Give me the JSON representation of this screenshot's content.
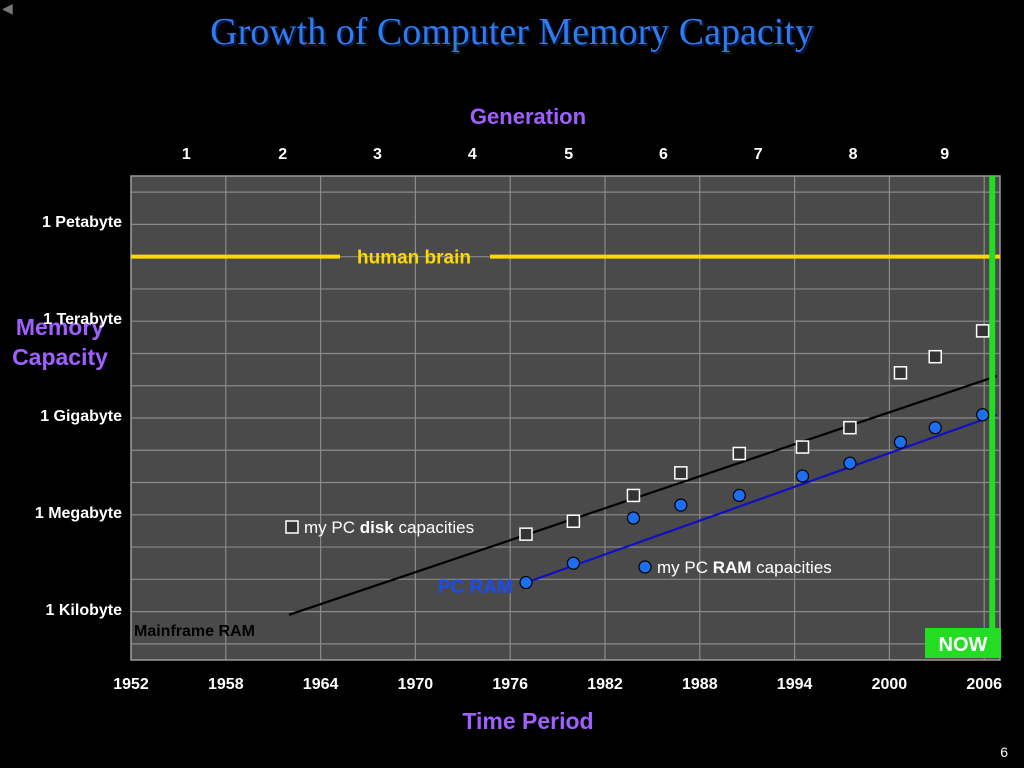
{
  "slide": {
    "title": "Growth of Computer Memory Capacity",
    "page_number": "6",
    "back_icon": "◀"
  },
  "chart_data": {
    "type": "scatter",
    "title": "Growth of Computer Memory Capacity",
    "xlabel": "Time Period",
    "ylabel": "Memory Capacity",
    "top_axis_label": "Generation",
    "xlim": [
      1952,
      2007
    ],
    "x_ticks": [
      1952,
      1958,
      1964,
      1970,
      1976,
      1982,
      1988,
      1994,
      2000,
      2006
    ],
    "ylim_bytes_log10": [
      1.5,
      16.5
    ],
    "y_ticks": [
      {
        "label": "1 Kilobyte",
        "log10": 3
      },
      {
        "label": "1 Megabyte",
        "log10": 6
      },
      {
        "label": "1 Gigabyte",
        "log10": 9
      },
      {
        "label": "1 Terabyte",
        "log10": 12
      },
      {
        "label": "1 Petabyte",
        "log10": 15
      }
    ],
    "generations": [
      {
        "label": "1",
        "x": 1955.5
      },
      {
        "label": "2",
        "x": 1961.6
      },
      {
        "label": "3",
        "x": 1967.6
      },
      {
        "label": "4",
        "x": 1973.6
      },
      {
        "label": "5",
        "x": 1979.7
      },
      {
        "label": "6",
        "x": 1985.7
      },
      {
        "label": "7",
        "x": 1991.7
      },
      {
        "label": "8",
        "x": 1997.7
      },
      {
        "label": "9",
        "x": 2003.5
      }
    ],
    "grid": true,
    "series": [
      {
        "name": "my PC disk capacities",
        "marker": "square",
        "color": "#ffffff",
        "points": [
          [
            1977.0,
            5.4
          ],
          [
            1980.0,
            5.8
          ],
          [
            1983.8,
            6.6
          ],
          [
            1986.8,
            7.3
          ],
          [
            1990.5,
            7.9
          ],
          [
            1994.5,
            8.1
          ],
          [
            1997.5,
            8.7
          ],
          [
            2000.7,
            10.4
          ],
          [
            2002.9,
            10.9
          ],
          [
            2005.9,
            11.7
          ]
        ]
      },
      {
        "name": "my PC RAM capacities",
        "marker": "circle",
        "color": "#1e6ef0",
        "points": [
          [
            1977.0,
            3.9
          ],
          [
            1980.0,
            4.5
          ],
          [
            1983.8,
            5.9
          ],
          [
            1986.8,
            6.3
          ],
          [
            1990.5,
            6.6
          ],
          [
            1994.5,
            7.2
          ],
          [
            1997.5,
            7.6
          ],
          [
            2000.7,
            8.25
          ],
          [
            2002.9,
            8.7
          ],
          [
            2005.9,
            9.1
          ]
        ]
      }
    ],
    "trend_lines": [
      {
        "label": "Mainframe RAM",
        "color": "#000000",
        "from": [
          1962,
          2.9
        ],
        "to": [
          2006.8,
          10.3
        ]
      },
      {
        "label": "PC RAM",
        "color": "#1010c0",
        "from": [
          1977,
          3.9
        ],
        "to": [
          2006.8,
          9.1
        ]
      }
    ],
    "annotations": {
      "human_brain": {
        "label": "human brain",
        "log10": 14.0,
        "color": "#ffd800"
      },
      "now": {
        "label": "NOW",
        "x": 2006,
        "color": "#22dd22"
      },
      "legend_disk": {
        "prefix": "my PC ",
        "bold": "disk",
        "suffix": " capacities"
      },
      "legend_ram": {
        "prefix": "my PC ",
        "bold": "RAM",
        "suffix": " capacities"
      },
      "mainframe_label": "Mainframe RAM",
      "pcram_label": "PC RAM"
    }
  }
}
